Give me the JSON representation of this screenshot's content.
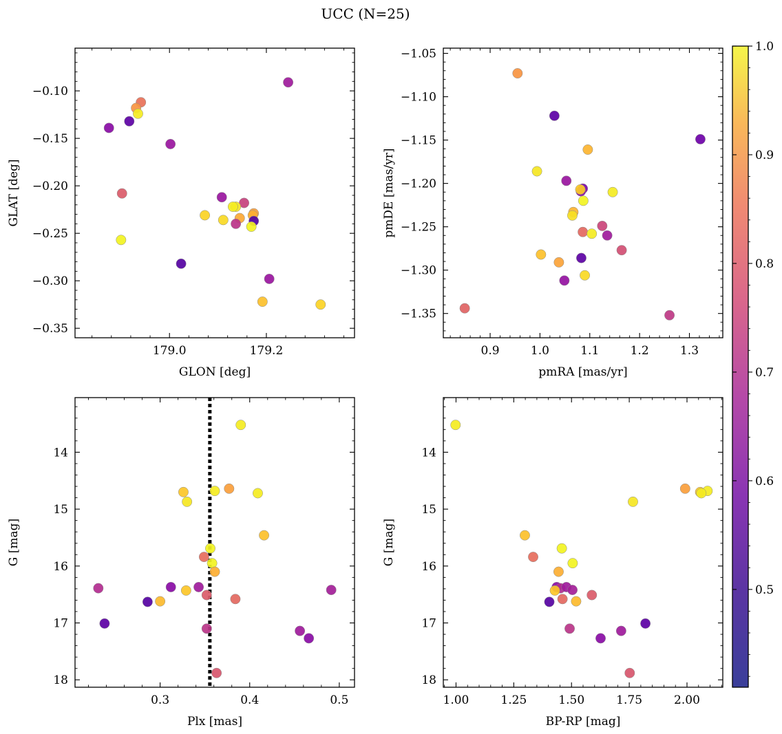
{
  "chart_data": {
    "title": "UCC (N=25)",
    "colorbar": {
      "ticks": [
        0.5,
        0.6,
        0.7,
        0.8,
        0.9,
        1.0
      ],
      "tick_labels": [
        "0.5",
        "0.6",
        "0.7",
        "0.8",
        "0.9",
        "1.0"
      ],
      "range": [
        0.41,
        1.0
      ],
      "colormap": "plasma"
    },
    "panels": [
      {
        "type": "scatter",
        "xlabel": "GLON [deg]",
        "ylabel": "GLAT [deg]",
        "xlim": [
          178.805,
          179.382
        ],
        "ylim": [
          -0.36,
          -0.055
        ],
        "xticks": [
          179.0,
          179.2
        ],
        "xtick_labels": [
          "179.0",
          "179.2"
        ],
        "yticks": [
          -0.35,
          -0.3,
          -0.25,
          -0.2,
          -0.15,
          -0.1
        ],
        "ytick_labels": [
          "−0.35",
          "−0.30",
          "−0.25",
          "−0.20",
          "−0.15",
          "−0.10"
        ],
        "points": [
          {
            "x": 179.245,
            "y": -0.091,
            "c": 0.56
          },
          {
            "x": 178.941,
            "y": -0.112,
            "c": 0.76
          },
          {
            "x": 178.931,
            "y": -0.118,
            "c": 0.83
          },
          {
            "x": 178.935,
            "y": -0.124,
            "c": 0.98
          },
          {
            "x": 178.917,
            "y": -0.132,
            "c": 0.44
          },
          {
            "x": 178.875,
            "y": -0.139,
            "c": 0.52
          },
          {
            "x": 179.002,
            "y": -0.156,
            "c": 0.55
          },
          {
            "x": 178.902,
            "y": -0.208,
            "c": 0.71
          },
          {
            "x": 179.108,
            "y": -0.212,
            "c": 0.55
          },
          {
            "x": 179.154,
            "y": -0.218,
            "c": 0.65
          },
          {
            "x": 179.137,
            "y": -0.222,
            "c": 0.97
          },
          {
            "x": 179.131,
            "y": -0.222,
            "c": 0.98
          },
          {
            "x": 179.174,
            "y": -0.229,
            "c": 0.85
          },
          {
            "x": 179.172,
            "y": -0.231,
            "c": 0.88
          },
          {
            "x": 179.073,
            "y": -0.231,
            "c": 0.94
          },
          {
            "x": 179.111,
            "y": -0.236,
            "c": 0.95
          },
          {
            "x": 179.145,
            "y": -0.234,
            "c": 0.87
          },
          {
            "x": 179.174,
            "y": -0.237,
            "c": 0.42
          },
          {
            "x": 179.137,
            "y": -0.24,
            "c": 0.62
          },
          {
            "x": 179.169,
            "y": -0.243,
            "c": 0.99
          },
          {
            "x": 178.9,
            "y": -0.257,
            "c": 0.99
          },
          {
            "x": 179.024,
            "y": -0.282,
            "c": 0.43
          },
          {
            "x": 179.206,
            "y": -0.298,
            "c": 0.55
          },
          {
            "x": 179.192,
            "y": -0.322,
            "c": 0.91
          },
          {
            "x": 179.312,
            "y": -0.325,
            "c": 0.94
          }
        ]
      },
      {
        "type": "scatter",
        "xlabel": "pmRA [mas/yr]",
        "ylabel": "pmDE [mas/yr]",
        "xlim": [
          0.806,
          1.367
        ],
        "ylim": [
          -1.378,
          -1.044
        ],
        "xticks": [
          0.9,
          1.0,
          1.1,
          1.2,
          1.3
        ],
        "xtick_labels": [
          "0.9",
          "1.0",
          "1.1",
          "1.2",
          "1.3"
        ],
        "yticks": [
          -1.35,
          -1.3,
          -1.25,
          -1.2,
          -1.15,
          -1.1,
          -1.05
        ],
        "ytick_labels": [
          "−1.35",
          "−1.30",
          "−1.25",
          "−1.20",
          "−1.15",
          "−1.10",
          "−1.05"
        ],
        "points": [
          {
            "x": 0.955,
            "y": -1.073,
            "c": 0.83
          },
          {
            "x": 1.029,
            "y": -1.122,
            "c": 0.44
          },
          {
            "x": 1.322,
            "y": -1.149,
            "c": 0.47
          },
          {
            "x": 1.096,
            "y": -1.161,
            "c": 0.89
          },
          {
            "x": 0.994,
            "y": -1.186,
            "c": 0.97
          },
          {
            "x": 1.053,
            "y": -1.197,
            "c": 0.55
          },
          {
            "x": 1.086,
            "y": -1.206,
            "c": 0.5
          },
          {
            "x": 1.082,
            "y": -1.209,
            "c": 0.52
          },
          {
            "x": 1.081,
            "y": -1.207,
            "c": 0.93
          },
          {
            "x": 1.146,
            "y": -1.21,
            "c": 0.98
          },
          {
            "x": 1.087,
            "y": -1.22,
            "c": 0.99
          },
          {
            "x": 1.067,
            "y": -1.233,
            "c": 0.89
          },
          {
            "x": 1.065,
            "y": -1.237,
            "c": 0.96
          },
          {
            "x": 1.125,
            "y": -1.249,
            "c": 0.66
          },
          {
            "x": 1.086,
            "y": -1.256,
            "c": 0.74
          },
          {
            "x": 1.104,
            "y": -1.258,
            "c": 0.98
          },
          {
            "x": 1.135,
            "y": -1.26,
            "c": 0.56
          },
          {
            "x": 1.164,
            "y": -1.277,
            "c": 0.68
          },
          {
            "x": 1.002,
            "y": -1.282,
            "c": 0.91
          },
          {
            "x": 1.083,
            "y": -1.286,
            "c": 0.44
          },
          {
            "x": 1.038,
            "y": -1.291,
            "c": 0.86
          },
          {
            "x": 1.09,
            "y": -1.306,
            "c": 0.95
          },
          {
            "x": 1.049,
            "y": -1.312,
            "c": 0.54
          },
          {
            "x": 0.849,
            "y": -1.344,
            "c": 0.73
          },
          {
            "x": 1.26,
            "y": -1.352,
            "c": 0.63
          }
        ]
      },
      {
        "type": "scatter",
        "xlabel": "Plx [mas]",
        "ylabel": "G [mag]",
        "xlim": [
          0.205,
          0.517
        ],
        "ylim": [
          18.13,
          13.04
        ],
        "y_inverted": true,
        "xticks": [
          0.3,
          0.4,
          0.5
        ],
        "xtick_labels": [
          "0.3",
          "0.4",
          "0.5"
        ],
        "yticks": [
          14,
          15,
          16,
          17,
          18
        ],
        "ytick_labels": [
          "14",
          "15",
          "16",
          "17",
          "18"
        ],
        "vline": {
          "x": 0.3555,
          "style": "dotted",
          "color": "#000000"
        },
        "points": [
          {
            "x": 0.39,
            "y": 13.52,
            "c": 0.98
          },
          {
            "x": 0.377,
            "y": 14.64,
            "c": 0.85
          },
          {
            "x": 0.326,
            "y": 14.7,
            "c": 0.92
          },
          {
            "x": 0.361,
            "y": 14.68,
            "c": 0.98
          },
          {
            "x": 0.409,
            "y": 14.72,
            "c": 0.98
          },
          {
            "x": 0.33,
            "y": 14.87,
            "c": 0.97
          },
          {
            "x": 0.416,
            "y": 15.46,
            "c": 0.91
          },
          {
            "x": 0.356,
            "y": 15.69,
            "c": 0.99
          },
          {
            "x": 0.349,
            "y": 15.84,
            "c": 0.75
          },
          {
            "x": 0.358,
            "y": 15.95,
            "c": 0.99
          },
          {
            "x": 0.361,
            "y": 16.1,
            "c": 0.88
          },
          {
            "x": 0.312,
            "y": 16.37,
            "c": 0.52
          },
          {
            "x": 0.231,
            "y": 16.39,
            "c": 0.6
          },
          {
            "x": 0.343,
            "y": 16.37,
            "c": 0.56
          },
          {
            "x": 0.491,
            "y": 16.42,
            "c": 0.57
          },
          {
            "x": 0.329,
            "y": 16.43,
            "c": 0.92
          },
          {
            "x": 0.352,
            "y": 16.51,
            "c": 0.71
          },
          {
            "x": 0.384,
            "y": 16.58,
            "c": 0.74
          },
          {
            "x": 0.286,
            "y": 16.63,
            "c": 0.43
          },
          {
            "x": 0.3,
            "y": 16.62,
            "c": 0.9
          },
          {
            "x": 0.238,
            "y": 17.01,
            "c": 0.44
          },
          {
            "x": 0.352,
            "y": 17.1,
            "c": 0.62
          },
          {
            "x": 0.456,
            "y": 17.14,
            "c": 0.56
          },
          {
            "x": 0.466,
            "y": 17.27,
            "c": 0.52
          },
          {
            "x": 0.363,
            "y": 17.88,
            "c": 0.7
          }
        ]
      },
      {
        "type": "scatter",
        "xlabel": "BP-RP [mag]",
        "ylabel": "G [mag]",
        "xlim": [
          0.945,
          2.155
        ],
        "ylim": [
          18.13,
          13.04
        ],
        "y_inverted": true,
        "xticks": [
          1.0,
          1.25,
          1.5,
          1.75,
          2.0
        ],
        "xtick_labels": [
          "1.00",
          "1.25",
          "1.50",
          "1.75",
          "2.00"
        ],
        "yticks": [
          14,
          15,
          16,
          17,
          18
        ],
        "ytick_labels": [
          "14",
          "15",
          "16",
          "17",
          "18"
        ],
        "points": [
          {
            "x": 0.998,
            "y": 13.52,
            "c": 0.98
          },
          {
            "x": 1.992,
            "y": 14.64,
            "c": 0.85
          },
          {
            "x": 2.057,
            "y": 14.7,
            "c": 0.92
          },
          {
            "x": 2.089,
            "y": 14.68,
            "c": 0.98
          },
          {
            "x": 2.062,
            "y": 14.72,
            "c": 0.98
          },
          {
            "x": 1.766,
            "y": 14.87,
            "c": 0.97
          },
          {
            "x": 1.298,
            "y": 15.46,
            "c": 0.91
          },
          {
            "x": 1.458,
            "y": 15.69,
            "c": 0.99
          },
          {
            "x": 1.334,
            "y": 15.84,
            "c": 0.75
          },
          {
            "x": 1.505,
            "y": 15.95,
            "c": 0.99
          },
          {
            "x": 1.444,
            "y": 16.1,
            "c": 0.88
          },
          {
            "x": 1.436,
            "y": 16.37,
            "c": 0.52
          },
          {
            "x": 1.452,
            "y": 16.39,
            "c": 0.6
          },
          {
            "x": 1.478,
            "y": 16.37,
            "c": 0.56
          },
          {
            "x": 1.504,
            "y": 16.42,
            "c": 0.57
          },
          {
            "x": 1.428,
            "y": 16.43,
            "c": 0.92
          },
          {
            "x": 1.588,
            "y": 16.51,
            "c": 0.71
          },
          {
            "x": 1.461,
            "y": 16.58,
            "c": 0.74
          },
          {
            "x": 1.404,
            "y": 16.63,
            "c": 0.43
          },
          {
            "x": 1.52,
            "y": 16.62,
            "c": 0.9
          },
          {
            "x": 1.82,
            "y": 17.01,
            "c": 0.44
          },
          {
            "x": 1.492,
            "y": 17.1,
            "c": 0.62
          },
          {
            "x": 1.715,
            "y": 17.14,
            "c": 0.56
          },
          {
            "x": 1.626,
            "y": 17.27,
            "c": 0.52
          },
          {
            "x": 1.752,
            "y": 17.88,
            "c": 0.7
          }
        ]
      }
    ]
  }
}
